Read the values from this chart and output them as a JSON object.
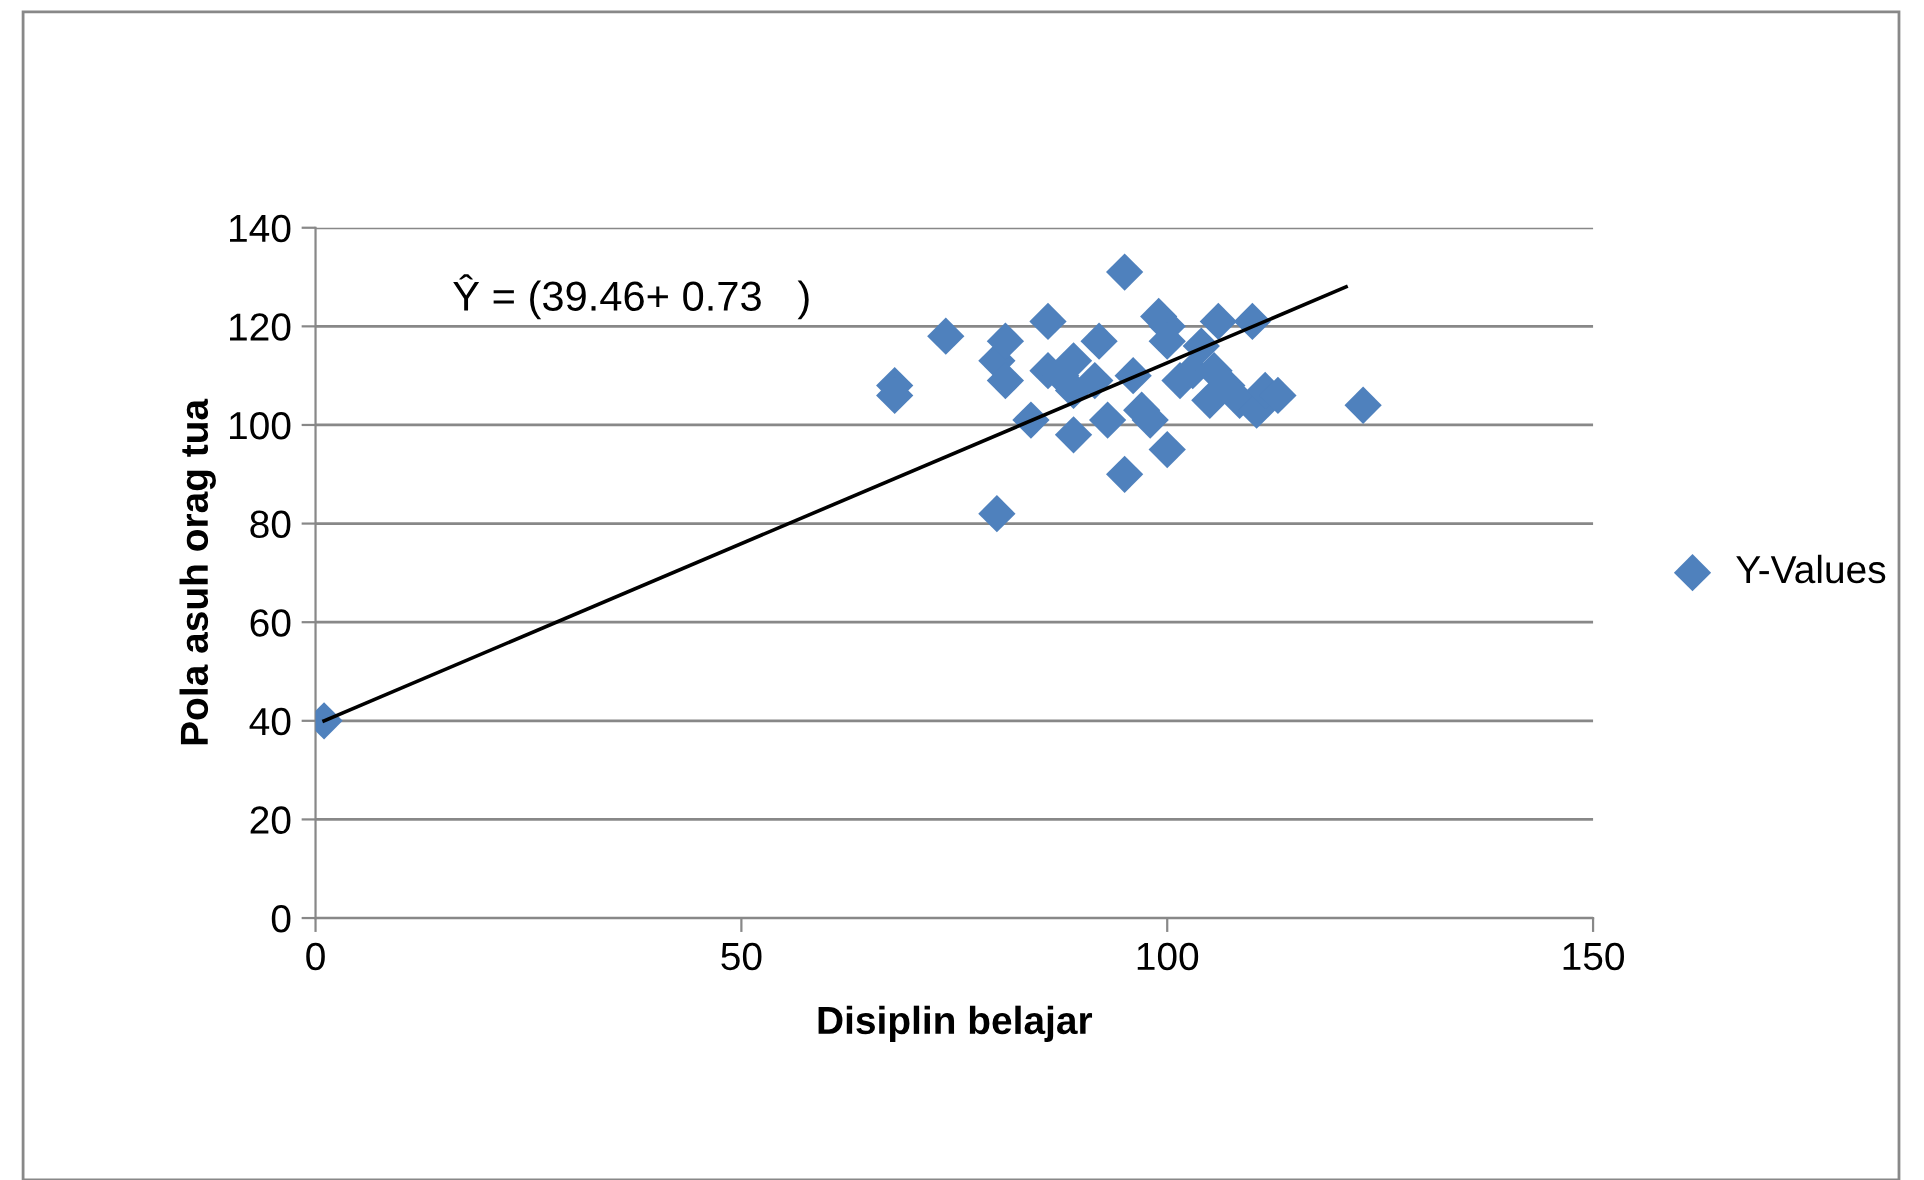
{
  "chart_data": {
    "type": "scatter",
    "xlabel": "Disiplin belajar",
    "ylabel": "Pola asuh orag tua",
    "xlim": [
      0,
      150
    ],
    "xticks": [
      0,
      50,
      100,
      150
    ],
    "ylim": [
      0,
      140
    ],
    "yticks": [
      0,
      20,
      40,
      60,
      80,
      100,
      120,
      140
    ],
    "grid": "y",
    "legend": "right",
    "marker": "diamond",
    "annotations": [
      "Ŷ = (39.46+ 0.73   )"
    ],
    "series": [
      {
        "name": "Y-Values",
        "color": "#4f81bd",
        "x": [
          1,
          68,
          68,
          74,
          80,
          80,
          81,
          81,
          84,
          86,
          86,
          87.5,
          89,
          89,
          89,
          92,
          91.5,
          93,
          95,
          95,
          96,
          97,
          98,
          99,
          100,
          100,
          100,
          101.5,
          103,
          104,
          105,
          105.5,
          106,
          107,
          108.5,
          110,
          110.5,
          111.5,
          113,
          123
        ],
        "values": [
          40,
          108,
          106,
          118,
          82,
          113,
          117,
          109,
          101,
          111,
          121,
          110,
          98,
          107,
          113,
          117,
          109,
          101,
          90,
          131,
          110,
          103,
          101,
          122,
          95,
          120,
          117,
          109,
          111,
          116,
          105,
          111,
          121,
          108,
          105,
          121,
          103,
          107,
          106,
          104
        ]
      },
      {
        "type": "line",
        "color": "#000000",
        "marker": "none",
        "x": [
          1,
          121
        ],
        "values": [
          40,
          128
        ]
      }
    ]
  }
}
